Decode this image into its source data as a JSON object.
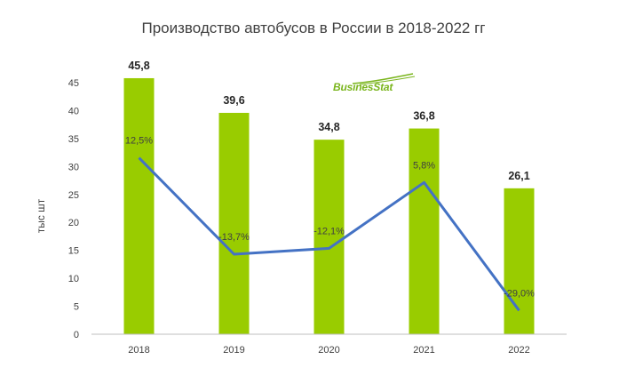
{
  "title": "Производство автобусов в России в 2018-2022 гг",
  "logo": {
    "text": "BusinesStat"
  },
  "colors": {
    "bar": "#99cc00",
    "line": "#4472c4",
    "axis": "#bfbfbf"
  },
  "chart_data": {
    "type": "bar",
    "categories": [
      "2018",
      "2019",
      "2020",
      "2021",
      "2022"
    ],
    "values": [
      45.8,
      39.6,
      34.8,
      36.8,
      26.1
    ],
    "value_labels": [
      "45,8",
      "39,6",
      "34,8",
      "36,8",
      "26,1"
    ],
    "ylabel": "тыс шт",
    "xlabel": "",
    "ylim": [
      0,
      45
    ],
    "yticks": [
      0,
      5,
      10,
      15,
      20,
      25,
      30,
      35,
      40,
      45
    ],
    "grid": false,
    "growth_line": {
      "values": [
        12.5,
        -13.7,
        -12.1,
        5.8,
        -29.0
      ],
      "labels": [
        "12,5%",
        "-13,7%",
        "-12,1%",
        "5,8%",
        "-29,0%"
      ]
    }
  }
}
